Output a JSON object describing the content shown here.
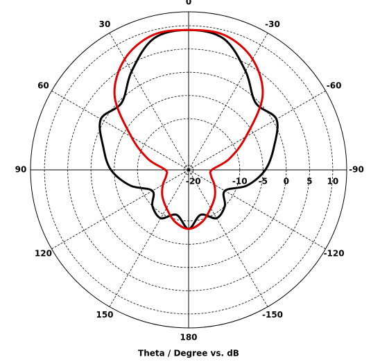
{
  "chart_data": {
    "type": "polar",
    "title": "Theta / Degree vs. dB",
    "theta": [
      0,
      15,
      30,
      45,
      60,
      75,
      90,
      105,
      120,
      135,
      150,
      165,
      180,
      -165,
      -150,
      -135,
      -120,
      -105,
      -90,
      -75,
      -60,
      -45,
      -30,
      -15
    ],
    "series": [
      {
        "color": "#000000",
        "values": [
          9.1,
          8.2,
          3.5,
          -0.6,
          0.8,
          -2,
          -4.3,
          -8,
          -12,
          -10,
          -9,
          -11,
          -8.3,
          -11,
          -9,
          -10,
          -12,
          -8,
          -4.5,
          -2,
          0.8,
          -0.6,
          3.5,
          8.2
        ]
      },
      {
        "color": "#e00000",
        "values": [
          9.1,
          9.0,
          6.5,
          1.5,
          -6.8,
          -12,
          -16,
          -16,
          -14.6,
          -13,
          -11.5,
          -9.5,
          -8.3,
          -9.5,
          -11.5,
          -13,
          -14.6,
          -16,
          -16,
          -12,
          -6.8,
          1.5,
          6.5,
          9.0
        ]
      }
    ],
    "rlim": [
      -21,
      13
    ],
    "rticks": [
      -20,
      -10,
      -5,
      0,
      5,
      10
    ],
    "thetaticks": [
      0,
      30,
      60,
      90,
      120,
      150,
      180,
      -150,
      -120,
      -90,
      -60,
      -30
    ],
    "grid": true
  }
}
